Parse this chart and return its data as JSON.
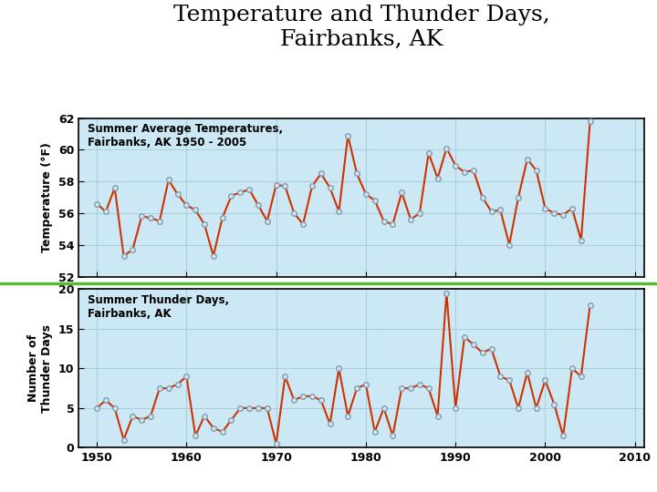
{
  "title": "Temperature and Thunder Days,\nFairbanks, AK",
  "title_fontsize": 18,
  "years": [
    1950,
    1951,
    1952,
    1953,
    1954,
    1955,
    1956,
    1957,
    1958,
    1959,
    1960,
    1961,
    1962,
    1963,
    1964,
    1965,
    1966,
    1967,
    1968,
    1969,
    1970,
    1971,
    1972,
    1973,
    1974,
    1975,
    1976,
    1977,
    1978,
    1979,
    1980,
    1981,
    1982,
    1983,
    1984,
    1985,
    1986,
    1987,
    1988,
    1989,
    1990,
    1991,
    1992,
    1993,
    1994,
    1995,
    1996,
    1997,
    1998,
    1999,
    2000,
    2001,
    2002,
    2003,
    2004,
    2005
  ],
  "temperatures": [
    56.6,
    56.1,
    57.6,
    53.3,
    53.7,
    55.8,
    55.7,
    55.5,
    58.1,
    57.2,
    56.5,
    56.2,
    55.3,
    53.3,
    55.7,
    57.1,
    57.3,
    57.5,
    56.5,
    55.5,
    57.8,
    57.7,
    56.0,
    55.3,
    57.7,
    58.5,
    57.6,
    56.1,
    60.9,
    58.5,
    57.2,
    56.8,
    55.5,
    55.3,
    57.3,
    55.6,
    56.0,
    59.8,
    58.2,
    60.1,
    59.0,
    58.6,
    58.7,
    57.0,
    56.1,
    56.2,
    54.0,
    57.0,
    59.4,
    58.7,
    56.3,
    56.0,
    55.9,
    56.3,
    54.3,
    61.8
  ],
  "thunder_days": [
    5.0,
    6.0,
    5.0,
    1.0,
    4.0,
    3.5,
    4.0,
    7.5,
    7.5,
    8.0,
    9.0,
    1.5,
    4.0,
    2.5,
    2.0,
    3.5,
    5.0,
    5.0,
    5.0,
    5.0,
    0.5,
    9.0,
    6.0,
    6.5,
    6.5,
    6.0,
    3.0,
    10.0,
    4.0,
    7.5,
    8.0,
    2.0,
    5.0,
    1.5,
    7.5,
    7.5,
    8.0,
    7.5,
    4.0,
    19.5,
    5.0,
    14.0,
    13.0,
    12.0,
    12.5,
    9.0,
    8.5,
    5.0,
    9.5,
    5.0,
    8.5,
    5.5,
    1.5,
    10.0,
    9.0,
    18.0
  ],
  "temp_ylim": [
    52,
    62
  ],
  "temp_yticks": [
    52,
    54,
    56,
    58,
    60,
    62
  ],
  "thunder_ylim": [
    0,
    20
  ],
  "thunder_yticks": [
    0,
    5,
    10,
    15,
    20
  ],
  "xlim": [
    1948,
    2011
  ],
  "xticks": [
    1950,
    1960,
    1970,
    1980,
    1990,
    2000,
    2010
  ],
  "bg_color": "#cce8f4",
  "line_color": "#cc3300",
  "marker_face": "#cce8f4",
  "marker_edge": "#8899aa",
  "grid_color": "#aaccdd",
  "temp_label": "Temperature (°F)",
  "thunder_label": "Number of\nThunder Days",
  "temp_legend": "Summer Average Temperatures,\nFairbanks, AK 1950 - 2005",
  "thunder_legend": "Summer Thunder Days,\nFairbanks, AK",
  "separator_color": "#55bb33",
  "label_fontsize": 9,
  "tick_fontsize": 9,
  "annot_fontsize": 8.5
}
